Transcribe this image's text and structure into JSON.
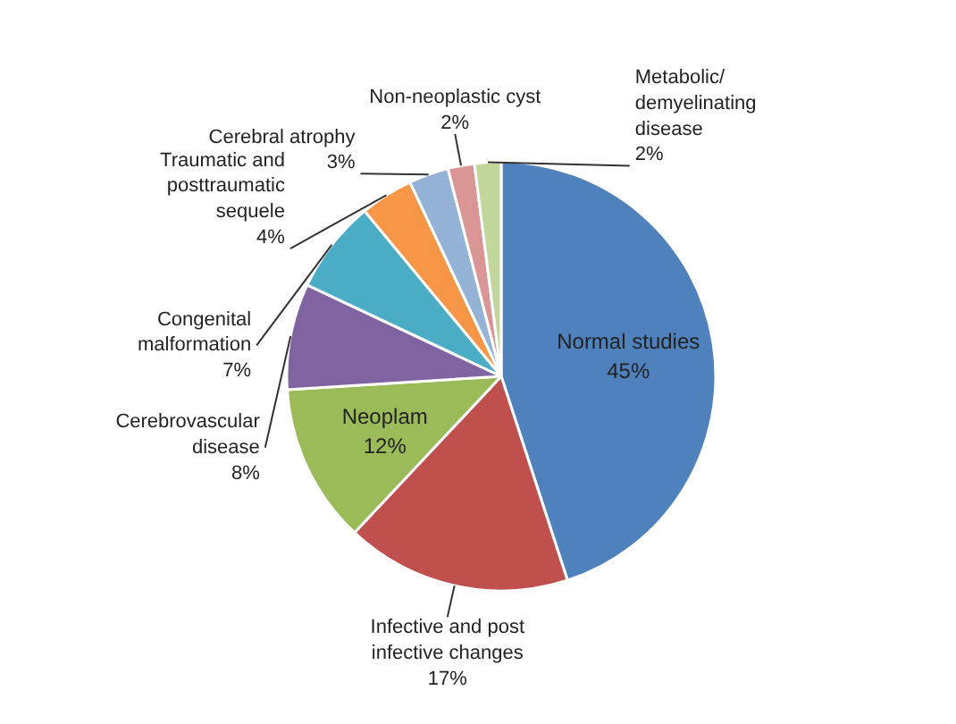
{
  "chart_data": {
    "type": "pie",
    "categories": [
      "Normal studies",
      "Infective and post infective changes",
      "Neoplam",
      "Cerebrovascular disease",
      "Congenital malformation",
      "Traumatic and posttraumatic sequele",
      "Cerebral atrophy",
      "Non-neoplastic cyst",
      "Metabolic/ demyelinating disease"
    ],
    "values": [
      45,
      17,
      12,
      8,
      7,
      4,
      3,
      2,
      2
    ],
    "colors": [
      "#4f81bd",
      "#c0504d",
      "#9bbb59",
      "#8064a2",
      "#4bacc6",
      "#f79646",
      "#95b3d7",
      "#d99694",
      "#c3d69b"
    ],
    "value_labels": [
      "45%",
      "17%",
      "12%",
      "8%",
      "7%",
      "4%",
      "3%",
      "2%",
      "2%"
    ]
  }
}
